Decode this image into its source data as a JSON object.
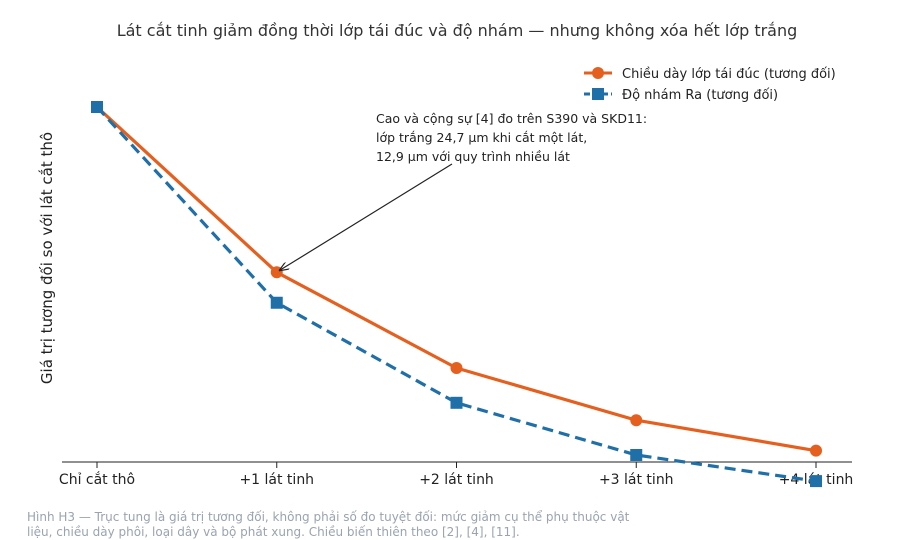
{
  "chart_data": {
    "type": "line",
    "title": "Lát cắt tinh giảm đồng thời lớp tái đúc và độ nhám — nhưng không xóa hết lớp trắng",
    "xlabel": "",
    "ylabel": "Giá trị tương đối so với lát cắt thô",
    "categories": [
      "Chỉ cắt thô",
      "+1 lát tinh",
      "+2 lát tinh",
      "+3 lát tinh",
      "+4 lát tinh"
    ],
    "ylim": [
      0,
      1.05
    ],
    "grid": false,
    "legend_position": "top-right",
    "series": [
      {
        "name": "Chiều dày lớp tái đúc (tương đối)",
        "values": [
          1.0,
          0.62,
          0.4,
          0.28,
          0.21
        ],
        "color": "#e5601f",
        "marker": "circle",
        "dash": "solid"
      },
      {
        "name": "Độ nhám Ra (tương đối)",
        "values": [
          1.0,
          0.55,
          0.32,
          0.2,
          0.14
        ],
        "color": "#1f6fa8",
        "marker": "square",
        "dash": "dashed"
      }
    ],
    "annotation": {
      "lines": [
        "Cao và cộng sự [4] đo trên S390 và SKD11:",
        "lớp trắng 24,7 µm khi cắt một lát,",
        "12,9 µm với quy trình nhiều lát"
      ],
      "target_category": "+1 lát tinh",
      "target_series": 0
    }
  },
  "caption": "Hình H3 — Trục tung là giá trị tương đối, không phải số đo tuyệt đối: mức giảm cụ thể phụ thuộc vật liệu, chiều dày phôi, loại dây và bộ phát xung. Chiều biến thiên theo [2], [4], [11]."
}
